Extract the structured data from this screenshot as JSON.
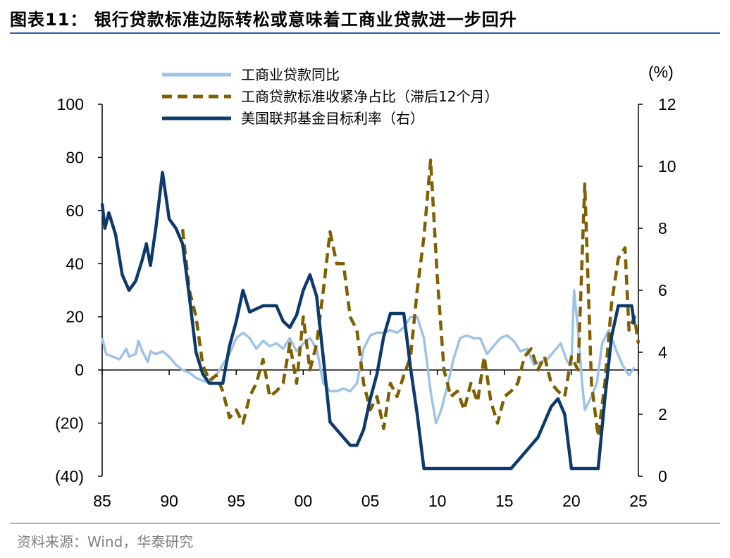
{
  "title": "图表11： 银行贷款标准边际转松或意味着工商业贷款进一步回升",
  "source": "资料来源：Wind，华泰研究",
  "chart_data": {
    "type": "line",
    "x_ticks": [
      "85",
      "90",
      "95",
      "00",
      "05",
      "10",
      "15",
      "20",
      "25"
    ],
    "xlim": [
      1985,
      2025
    ],
    "left_axis": {
      "ylim": [
        -40,
        100
      ],
      "ticks": [
        "(40)",
        "(20)",
        "0",
        "20",
        "40",
        "60",
        "80",
        "100"
      ]
    },
    "right_axis": {
      "unit": "(%)",
      "ylim": [
        0,
        12
      ],
      "ticks": [
        "0",
        "2",
        "4",
        "6",
        "8",
        "10",
        "12"
      ]
    },
    "grid": false,
    "legend_position": "top-center",
    "series": [
      {
        "name": "工商业贷款同比",
        "axis": "left",
        "color": "#9dc3e6",
        "style": "solid",
        "points": [
          [
            1985.0,
            12
          ],
          [
            1985.3,
            6
          ],
          [
            1985.8,
            5
          ],
          [
            1986.3,
            4
          ],
          [
            1986.8,
            8
          ],
          [
            1987.0,
            5
          ],
          [
            1987.5,
            6
          ],
          [
            1987.7,
            11
          ],
          [
            1988.0,
            7
          ],
          [
            1988.4,
            3
          ],
          [
            1988.6,
            7
          ],
          [
            1989.0,
            6
          ],
          [
            1989.5,
            7
          ],
          [
            1990.0,
            5
          ],
          [
            1990.5,
            2
          ],
          [
            1991.0,
            0
          ],
          [
            1991.5,
            -1
          ],
          [
            1992.0,
            -3
          ],
          [
            1992.5,
            -4
          ],
          [
            1993.0,
            -5
          ],
          [
            1993.5,
            -2
          ],
          [
            1994.0,
            2
          ],
          [
            1994.5,
            6
          ],
          [
            1995.0,
            12
          ],
          [
            1995.5,
            14
          ],
          [
            1996.0,
            12
          ],
          [
            1996.5,
            8
          ],
          [
            1997.0,
            11
          ],
          [
            1997.5,
            9
          ],
          [
            1998.0,
            10
          ],
          [
            1998.5,
            8
          ],
          [
            1999.0,
            12
          ],
          [
            1999.5,
            7
          ],
          [
            2000.0,
            10
          ],
          [
            2000.5,
            12
          ],
          [
            2001.0,
            8
          ],
          [
            2001.5,
            -5
          ],
          [
            2002.0,
            -8
          ],
          [
            2002.5,
            -8
          ],
          [
            2003.0,
            -7
          ],
          [
            2003.5,
            -8
          ],
          [
            2004.0,
            -5
          ],
          [
            2004.5,
            8
          ],
          [
            2005.0,
            13
          ],
          [
            2005.5,
            14
          ],
          [
            2006.0,
            14
          ],
          [
            2006.5,
            15
          ],
          [
            2007.0,
            14
          ],
          [
            2007.5,
            16
          ],
          [
            2008.0,
            20
          ],
          [
            2008.5,
            20
          ],
          [
            2009.0,
            12
          ],
          [
            2009.5,
            -8
          ],
          [
            2009.9,
            -20
          ],
          [
            2010.3,
            -15
          ],
          [
            2010.8,
            -5
          ],
          [
            2011.2,
            4
          ],
          [
            2011.7,
            12
          ],
          [
            2012.2,
            13
          ],
          [
            2012.7,
            12
          ],
          [
            2013.2,
            12
          ],
          [
            2013.7,
            6
          ],
          [
            2014.2,
            9
          ],
          [
            2014.7,
            12
          ],
          [
            2015.2,
            13
          ],
          [
            2015.7,
            11
          ],
          [
            2016.2,
            7
          ],
          [
            2016.7,
            8
          ],
          [
            2017.2,
            2
          ],
          [
            2017.7,
            3
          ],
          [
            2018.2,
            4
          ],
          [
            2018.7,
            7
          ],
          [
            2019.2,
            10
          ],
          [
            2019.7,
            3
          ],
          [
            2020.0,
            2
          ],
          [
            2020.2,
            30
          ],
          [
            2020.5,
            15
          ],
          [
            2020.8,
            -5
          ],
          [
            2021.0,
            -15
          ],
          [
            2021.5,
            -10
          ],
          [
            2021.9,
            -5
          ],
          [
            2022.3,
            10
          ],
          [
            2022.8,
            15
          ],
          [
            2023.3,
            8
          ],
          [
            2023.8,
            2
          ],
          [
            2024.3,
            -2
          ],
          [
            2024.7,
            1
          ]
        ]
      },
      {
        "name": "工商贷款标准收紧净占比（滞后12个月）",
        "axis": "left",
        "color": "#7f6000",
        "style": "dashed",
        "points": [
          [
            1991.0,
            53
          ],
          [
            1991.5,
            30
          ],
          [
            1992.0,
            20
          ],
          [
            1992.5,
            2
          ],
          [
            1993.0,
            -4
          ],
          [
            1993.5,
            -2
          ],
          [
            1994.0,
            -8
          ],
          [
            1994.5,
            -18
          ],
          [
            1995.0,
            -15
          ],
          [
            1995.5,
            -20
          ],
          [
            1996.0,
            -10
          ],
          [
            1996.5,
            -5
          ],
          [
            1997.0,
            4
          ],
          [
            1997.5,
            -10
          ],
          [
            1998.0,
            -8
          ],
          [
            1998.5,
            -5
          ],
          [
            1999.0,
            10
          ],
          [
            1999.5,
            -5
          ],
          [
            2000.0,
            20
          ],
          [
            2000.5,
            0
          ],
          [
            2001.0,
            10
          ],
          [
            2001.5,
            30
          ],
          [
            2002.0,
            52
          ],
          [
            2002.5,
            40
          ],
          [
            2003.0,
            40
          ],
          [
            2003.5,
            20
          ],
          [
            2004.0,
            15
          ],
          [
            2004.5,
            -5
          ],
          [
            2005.0,
            -15
          ],
          [
            2005.5,
            -10
          ],
          [
            2006.0,
            -22
          ],
          [
            2006.5,
            -5
          ],
          [
            2007.0,
            -10
          ],
          [
            2007.5,
            -2
          ],
          [
            2008.0,
            5
          ],
          [
            2008.5,
            30
          ],
          [
            2009.0,
            50
          ],
          [
            2009.5,
            79
          ],
          [
            2010.0,
            35
          ],
          [
            2010.5,
            0
          ],
          [
            2011.0,
            -10
          ],
          [
            2011.5,
            -8
          ],
          [
            2012.0,
            -15
          ],
          [
            2012.5,
            -5
          ],
          [
            2013.0,
            -12
          ],
          [
            2013.5,
            5
          ],
          [
            2014.0,
            -12
          ],
          [
            2014.5,
            -20
          ],
          [
            2015.0,
            -10
          ],
          [
            2015.5,
            -8
          ],
          [
            2016.0,
            -5
          ],
          [
            2016.5,
            5
          ],
          [
            2017.0,
            8
          ],
          [
            2017.5,
            0
          ],
          [
            2018.0,
            5
          ],
          [
            2018.5,
            -5
          ],
          [
            2019.0,
            -8
          ],
          [
            2019.5,
            -10
          ],
          [
            2020.0,
            5
          ],
          [
            2020.5,
            0
          ],
          [
            2021.0,
            70
          ],
          [
            2021.5,
            -5
          ],
          [
            2022.0,
            -25
          ],
          [
            2022.5,
            -5
          ],
          [
            2023.0,
            25
          ],
          [
            2023.5,
            42
          ],
          [
            2024.0,
            46
          ],
          [
            2024.3,
            15
          ],
          [
            2024.7,
            20
          ],
          [
            2025.0,
            10
          ]
        ]
      },
      {
        "name": "美国联邦基金目标利率（右）",
        "axis": "right",
        "color": "#0e3a6b",
        "style": "solid",
        "points": [
          [
            1985.0,
            8.8
          ],
          [
            1985.2,
            8.0
          ],
          [
            1985.5,
            8.5
          ],
          [
            1986.0,
            7.8
          ],
          [
            1986.5,
            6.5
          ],
          [
            1987.0,
            6.0
          ],
          [
            1987.5,
            6.3
          ],
          [
            1988.0,
            7.0
          ],
          [
            1988.3,
            7.5
          ],
          [
            1988.6,
            6.8
          ],
          [
            1989.0,
            8.0
          ],
          [
            1989.5,
            9.8
          ],
          [
            1990.0,
            8.3
          ],
          [
            1990.5,
            8.0
          ],
          [
            1991.0,
            7.5
          ],
          [
            1991.5,
            5.8
          ],
          [
            1992.0,
            4.0
          ],
          [
            1992.5,
            3.3
          ],
          [
            1993.0,
            3.0
          ],
          [
            1994.0,
            3.0
          ],
          [
            1994.5,
            4.2
          ],
          [
            1995.0,
            5.0
          ],
          [
            1995.5,
            6.0
          ],
          [
            1996.0,
            5.3
          ],
          [
            1997.0,
            5.5
          ],
          [
            1998.0,
            5.5
          ],
          [
            1998.5,
            5.0
          ],
          [
            1999.0,
            4.8
          ],
          [
            1999.5,
            5.2
          ],
          [
            2000.0,
            6.0
          ],
          [
            2000.5,
            6.5
          ],
          [
            2001.0,
            5.8
          ],
          [
            2001.5,
            3.8
          ],
          [
            2002.0,
            1.75
          ],
          [
            2003.0,
            1.25
          ],
          [
            2003.5,
            1.0
          ],
          [
            2004.0,
            1.0
          ],
          [
            2004.5,
            1.5
          ],
          [
            2005.0,
            2.5
          ],
          [
            2005.5,
            3.3
          ],
          [
            2006.0,
            4.5
          ],
          [
            2006.5,
            5.25
          ],
          [
            2007.0,
            5.25
          ],
          [
            2007.5,
            5.25
          ],
          [
            2008.0,
            3.5
          ],
          [
            2008.5,
            2.0
          ],
          [
            2009.0,
            0.25
          ],
          [
            2015.5,
            0.25
          ],
          [
            2016.0,
            0.5
          ],
          [
            2017.0,
            1.0
          ],
          [
            2017.5,
            1.25
          ],
          [
            2018.0,
            1.75
          ],
          [
            2018.5,
            2.25
          ],
          [
            2019.0,
            2.5
          ],
          [
            2019.5,
            2.0
          ],
          [
            2020.0,
            0.25
          ],
          [
            2022.0,
            0.25
          ],
          [
            2022.5,
            2.5
          ],
          [
            2023.0,
            4.5
          ],
          [
            2023.5,
            5.5
          ],
          [
            2024.5,
            5.5
          ],
          [
            2024.7,
            4.9
          ]
        ]
      }
    ]
  }
}
